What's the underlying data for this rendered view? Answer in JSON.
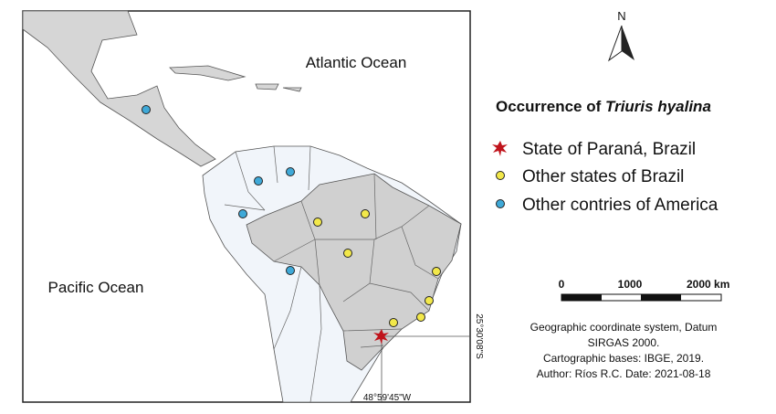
{
  "map": {
    "oceans": {
      "atlantic": "Atlantic Ocean",
      "pacific": "Pacific Ocean"
    },
    "north": "N",
    "coordinates": {
      "latitude": "25°30'08\"S",
      "longitude": "48°59'45\"W"
    },
    "legend": {
      "title": "Occurrence of",
      "species": "Triuris hyalina",
      "items": [
        "State of Paraná, Brazil",
        "Other states of Brazil",
        "Other contries of America"
      ]
    },
    "scale_bar": {
      "labels": [
        "0",
        "1000",
        "2000 km"
      ]
    },
    "credits": [
      "Geographic coordinate system, Datum",
      "SIRGAS 2000.",
      "Cartographic bases: IBGE, 2019.",
      "Author: Ríos R.C. Date: 2021-08-18"
    ]
  }
}
